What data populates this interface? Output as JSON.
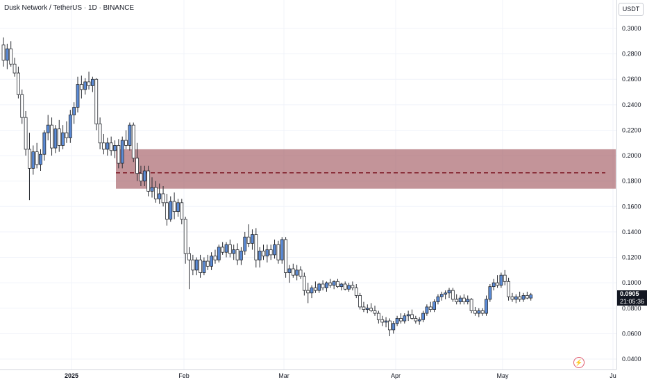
{
  "header": {
    "title": "Dusk Network / TetherUS · 1D · BINANCE",
    "currency": "USDT"
  },
  "last_price": {
    "value": "0.0905",
    "countdown": "21:05:36"
  },
  "colors": {
    "up": "#5b8bd6",
    "down": "#ffffff",
    "wick": "#26292f",
    "zone_fill": "#a35a63",
    "zone_line": "#7a0f1c",
    "grid": "#f0f3fa",
    "badge": "#131722"
  },
  "chart_data": {
    "type": "candlestick",
    "y_axis": {
      "ticks": [
        "0.3000",
        "0.2800",
        "0.2600",
        "0.2400",
        "0.2200",
        "0.2000",
        "0.1800",
        "0.1600",
        "0.1400",
        "0.1200",
        "0.1000",
        "0.0800",
        "0.0600",
        "0.0400"
      ],
      "range": [
        0.035,
        0.31
      ]
    },
    "x_axis": {
      "labels": [
        "2025",
        "Feb",
        "Mar",
        "Apr",
        "May",
        "Ju"
      ]
    },
    "zone": {
      "top": 0.205,
      "bottom": 0.174,
      "midline": 0.1865
    },
    "candles": [
      [
        0.287,
        0.293,
        0.27,
        0.275
      ],
      [
        0.275,
        0.288,
        0.268,
        0.284
      ],
      [
        0.284,
        0.29,
        0.27,
        0.272
      ],
      [
        0.272,
        0.277,
        0.262,
        0.265
      ],
      [
        0.265,
        0.27,
        0.245,
        0.248
      ],
      [
        0.248,
        0.252,
        0.225,
        0.23
      ],
      [
        0.23,
        0.235,
        0.2,
        0.205
      ],
      [
        0.205,
        0.218,
        0.165,
        0.19
      ],
      [
        0.19,
        0.208,
        0.185,
        0.203
      ],
      [
        0.203,
        0.21,
        0.19,
        0.193
      ],
      [
        0.193,
        0.205,
        0.188,
        0.201
      ],
      [
        0.201,
        0.22,
        0.196,
        0.218
      ],
      [
        0.218,
        0.232,
        0.212,
        0.224
      ],
      [
        0.224,
        0.23,
        0.2,
        0.206
      ],
      [
        0.206,
        0.224,
        0.202,
        0.221
      ],
      [
        0.221,
        0.228,
        0.203,
        0.208
      ],
      [
        0.208,
        0.224,
        0.205,
        0.218
      ],
      [
        0.218,
        0.227,
        0.21,
        0.214
      ],
      [
        0.214,
        0.236,
        0.21,
        0.232
      ],
      [
        0.232,
        0.242,
        0.225,
        0.238
      ],
      [
        0.238,
        0.262,
        0.234,
        0.256
      ],
      [
        0.256,
        0.263,
        0.245,
        0.252
      ],
      [
        0.252,
        0.261,
        0.248,
        0.258
      ],
      [
        0.258,
        0.266,
        0.252,
        0.255
      ],
      [
        0.255,
        0.262,
        0.25,
        0.26
      ],
      [
        0.26,
        0.261,
        0.22,
        0.225
      ],
      [
        0.225,
        0.23,
        0.205,
        0.21
      ],
      [
        0.21,
        0.217,
        0.201,
        0.205
      ],
      [
        0.205,
        0.214,
        0.2,
        0.21
      ],
      [
        0.21,
        0.215,
        0.2,
        0.204
      ],
      [
        0.204,
        0.212,
        0.198,
        0.208
      ],
      [
        0.208,
        0.213,
        0.19,
        0.194
      ],
      [
        0.194,
        0.215,
        0.19,
        0.212
      ],
      [
        0.212,
        0.22,
        0.205,
        0.208
      ],
      [
        0.208,
        0.226,
        0.204,
        0.224
      ],
      [
        0.224,
        0.226,
        0.195,
        0.198
      ],
      [
        0.198,
        0.21,
        0.18,
        0.186
      ],
      [
        0.186,
        0.192,
        0.176,
        0.18
      ],
      [
        0.18,
        0.192,
        0.176,
        0.188
      ],
      [
        0.188,
        0.192,
        0.168,
        0.172
      ],
      [
        0.172,
        0.183,
        0.167,
        0.175
      ],
      [
        0.175,
        0.18,
        0.163,
        0.166
      ],
      [
        0.166,
        0.178,
        0.162,
        0.17
      ],
      [
        0.17,
        0.176,
        0.16,
        0.163
      ],
      [
        0.163,
        0.17,
        0.145,
        0.15
      ],
      [
        0.15,
        0.168,
        0.148,
        0.164
      ],
      [
        0.164,
        0.171,
        0.15,
        0.156
      ],
      [
        0.156,
        0.166,
        0.152,
        0.163
      ],
      [
        0.163,
        0.166,
        0.146,
        0.15
      ],
      [
        0.15,
        0.152,
        0.115,
        0.123
      ],
      [
        0.123,
        0.128,
        0.095,
        0.118
      ],
      [
        0.118,
        0.122,
        0.106,
        0.11
      ],
      [
        0.11,
        0.12,
        0.106,
        0.118
      ],
      [
        0.118,
        0.122,
        0.104,
        0.108
      ],
      [
        0.108,
        0.12,
        0.106,
        0.117
      ],
      [
        0.117,
        0.122,
        0.11,
        0.113
      ],
      [
        0.113,
        0.124,
        0.11,
        0.121
      ],
      [
        0.121,
        0.126,
        0.115,
        0.118
      ],
      [
        0.118,
        0.13,
        0.116,
        0.128
      ],
      [
        0.128,
        0.132,
        0.122,
        0.124
      ],
      [
        0.124,
        0.132,
        0.12,
        0.13
      ],
      [
        0.13,
        0.134,
        0.12,
        0.123
      ],
      [
        0.123,
        0.13,
        0.118,
        0.126
      ],
      [
        0.126,
        0.131,
        0.114,
        0.118
      ],
      [
        0.118,
        0.128,
        0.114,
        0.125
      ],
      [
        0.125,
        0.14,
        0.122,
        0.136
      ],
      [
        0.136,
        0.146,
        0.128,
        0.131
      ],
      [
        0.131,
        0.142,
        0.126,
        0.138
      ],
      [
        0.138,
        0.143,
        0.112,
        0.118
      ],
      [
        0.118,
        0.128,
        0.112,
        0.125
      ],
      [
        0.125,
        0.13,
        0.118,
        0.121
      ],
      [
        0.121,
        0.13,
        0.116,
        0.126
      ],
      [
        0.126,
        0.13,
        0.118,
        0.122
      ],
      [
        0.122,
        0.134,
        0.119,
        0.13
      ],
      [
        0.13,
        0.133,
        0.115,
        0.118
      ],
      [
        0.118,
        0.136,
        0.115,
        0.134
      ],
      [
        0.134,
        0.136,
        0.104,
        0.108
      ],
      [
        0.108,
        0.114,
        0.1,
        0.111
      ],
      [
        0.111,
        0.115,
        0.104,
        0.106
      ],
      [
        0.106,
        0.114,
        0.102,
        0.11
      ],
      [
        0.11,
        0.113,
        0.103,
        0.105
      ],
      [
        0.105,
        0.108,
        0.09,
        0.094
      ],
      [
        0.094,
        0.1,
        0.084,
        0.092
      ],
      [
        0.092,
        0.098,
        0.088,
        0.096
      ],
      [
        0.096,
        0.101,
        0.092,
        0.094
      ],
      [
        0.094,
        0.1,
        0.092,
        0.099
      ],
      [
        0.099,
        0.102,
        0.094,
        0.096
      ],
      [
        0.096,
        0.101,
        0.093,
        0.1
      ],
      [
        0.1,
        0.103,
        0.096,
        0.098
      ],
      [
        0.098,
        0.102,
        0.095,
        0.101
      ],
      [
        0.101,
        0.103,
        0.096,
        0.097
      ],
      [
        0.097,
        0.1,
        0.094,
        0.099
      ],
      [
        0.099,
        0.101,
        0.094,
        0.095
      ],
      [
        0.095,
        0.1,
        0.093,
        0.098
      ],
      [
        0.098,
        0.101,
        0.094,
        0.096
      ],
      [
        0.096,
        0.099,
        0.088,
        0.09
      ],
      [
        0.09,
        0.092,
        0.079,
        0.081
      ],
      [
        0.081,
        0.085,
        0.077,
        0.079
      ],
      [
        0.079,
        0.083,
        0.076,
        0.08
      ],
      [
        0.08,
        0.084,
        0.077,
        0.078
      ],
      [
        0.078,
        0.082,
        0.074,
        0.076
      ],
      [
        0.076,
        0.078,
        0.068,
        0.071
      ],
      [
        0.071,
        0.074,
        0.066,
        0.069
      ],
      [
        0.069,
        0.073,
        0.065,
        0.07
      ],
      [
        0.07,
        0.072,
        0.058,
        0.063
      ],
      [
        0.063,
        0.07,
        0.06,
        0.068
      ],
      [
        0.068,
        0.074,
        0.066,
        0.072
      ],
      [
        0.072,
        0.076,
        0.068,
        0.07
      ],
      [
        0.07,
        0.076,
        0.068,
        0.074
      ],
      [
        0.074,
        0.078,
        0.07,
        0.075
      ],
      [
        0.075,
        0.079,
        0.071,
        0.072
      ],
      [
        0.072,
        0.074,
        0.068,
        0.07
      ],
      [
        0.07,
        0.073,
        0.067,
        0.071
      ],
      [
        0.071,
        0.078,
        0.069,
        0.076
      ],
      [
        0.076,
        0.083,
        0.074,
        0.081
      ],
      [
        0.081,
        0.085,
        0.077,
        0.079
      ],
      [
        0.079,
        0.087,
        0.077,
        0.085
      ],
      [
        0.085,
        0.091,
        0.083,
        0.089
      ],
      [
        0.089,
        0.093,
        0.086,
        0.091
      ],
      [
        0.091,
        0.094,
        0.087,
        0.092
      ],
      [
        0.092,
        0.096,
        0.088,
        0.094
      ],
      [
        0.094,
        0.096,
        0.085,
        0.087
      ],
      [
        0.087,
        0.091,
        0.083,
        0.085
      ],
      [
        0.085,
        0.09,
        0.083,
        0.088
      ],
      [
        0.088,
        0.091,
        0.083,
        0.085
      ],
      [
        0.085,
        0.09,
        0.083,
        0.087
      ],
      [
        0.087,
        0.088,
        0.076,
        0.078
      ],
      [
        0.078,
        0.081,
        0.074,
        0.076
      ],
      [
        0.076,
        0.08,
        0.073,
        0.078
      ],
      [
        0.078,
        0.08,
        0.074,
        0.076
      ],
      [
        0.076,
        0.09,
        0.074,
        0.087
      ],
      [
        0.087,
        0.099,
        0.085,
        0.097
      ],
      [
        0.097,
        0.103,
        0.094,
        0.1
      ],
      [
        0.1,
        0.106,
        0.096,
        0.098
      ],
      [
        0.098,
        0.108,
        0.096,
        0.106
      ],
      [
        0.106,
        0.11,
        0.098,
        0.101
      ],
      [
        0.101,
        0.104,
        0.086,
        0.089
      ],
      [
        0.089,
        0.092,
        0.085,
        0.087
      ],
      [
        0.087,
        0.091,
        0.084,
        0.089
      ],
      [
        0.089,
        0.093,
        0.085,
        0.087
      ],
      [
        0.087,
        0.092,
        0.085,
        0.09
      ],
      [
        0.09,
        0.093,
        0.087,
        0.088
      ],
      [
        0.088,
        0.092,
        0.086,
        0.0905
      ]
    ]
  }
}
